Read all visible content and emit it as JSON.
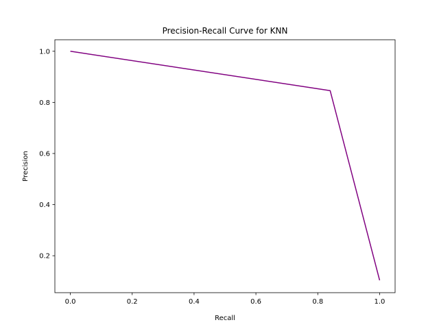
{
  "chart_data": {
    "type": "line",
    "title": "Precision-Recall Curve for KNN",
    "xlabel": "Recall",
    "ylabel": "Precision",
    "xlim": [
      -0.05,
      1.05
    ],
    "ylim": [
      0.0555,
      1.045
    ],
    "xticks": [
      0.0,
      0.2,
      0.4,
      0.6,
      0.8,
      1.0
    ],
    "xtick_labels": [
      "0.0",
      "0.2",
      "0.4",
      "0.6",
      "0.8",
      "1.0"
    ],
    "yticks": [
      0.2,
      0.4,
      0.6,
      0.8,
      1.0
    ],
    "ytick_labels": [
      "0.2",
      "0.4",
      "0.6",
      "0.8",
      "1.0"
    ],
    "grid": false,
    "legend": null,
    "series": [
      {
        "color": "#800080",
        "x": [
          0.0,
          0.84,
          1.0
        ],
        "y": [
          1.0,
          0.846,
          0.104
        ]
      }
    ]
  }
}
